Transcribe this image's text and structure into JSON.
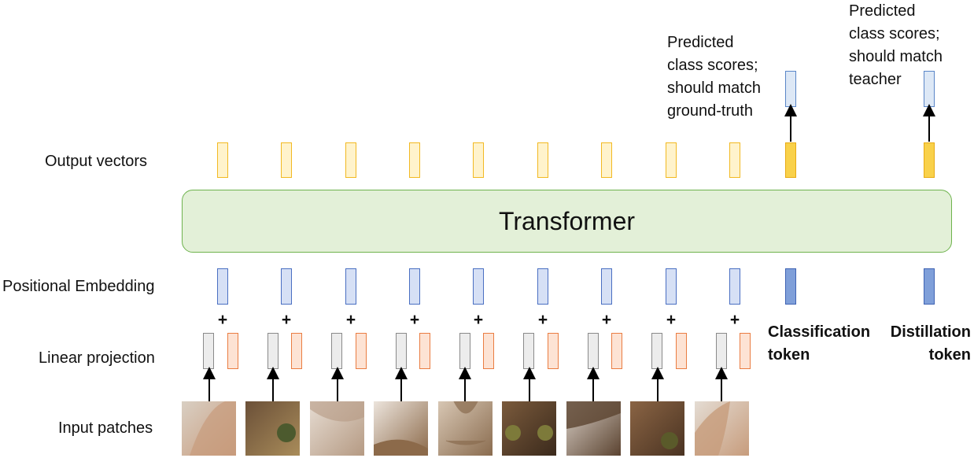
{
  "row_labels": {
    "output_vectors": "Output vectors",
    "positional_embedding": "Positional Embedding",
    "linear_projection": "Linear projection",
    "input_patches": "Input patches"
  },
  "transformer_label": "Transformer",
  "annotations": {
    "classification_scores": "Predicted\nclass scores;\nshould match\nground-truth",
    "distillation_scores": "Predicted\nclass scores;\nshould match\nteacher"
  },
  "tokens": {
    "classification": "Classification\ntoken",
    "distillation": "Distillation\ntoken"
  },
  "plus_sign": "+",
  "colors": {
    "transformer_fill": "#e3f0d8",
    "transformer_border": "#6eb34d",
    "output_vector": "#fff3cc",
    "output_vector_token": "#f9d14a",
    "positional_embedding": "#d6e0f5",
    "positional_embedding_token": "#7f9fd9",
    "linear_projection_gray": "#ececec",
    "linear_projection_orange": "#fde3d4"
  },
  "patches": [
    {
      "name": "cat-ear-patch",
      "bg": "#d9cfc3",
      "fg": "#c89b7c"
    },
    {
      "name": "cat-eye-patch",
      "bg": "#6b5038",
      "fg": "#a98c5a"
    },
    {
      "name": "cat-fur-patch",
      "bg": "#e6dcd2",
      "fg": "#b59a83"
    },
    {
      "name": "cat-fur-patch",
      "bg": "#ece4dc",
      "fg": "#8c6a4a"
    },
    {
      "name": "cat-nose-patch",
      "bg": "#d7c6b3",
      "fg": "#8a6c4f"
    },
    {
      "name": "cat-face-patch",
      "bg": "#7a5a3c",
      "fg": "#3b2a1c"
    },
    {
      "name": "cat-fur-patch",
      "bg": "#d8cfc6",
      "fg": "#5b4330"
    },
    {
      "name": "cat-eye-patch",
      "bg": "#8a6444",
      "fg": "#4a3322"
    },
    {
      "name": "cat-ear-patch",
      "bg": "#e4dcd3",
      "fg": "#c79c7c"
    }
  ]
}
